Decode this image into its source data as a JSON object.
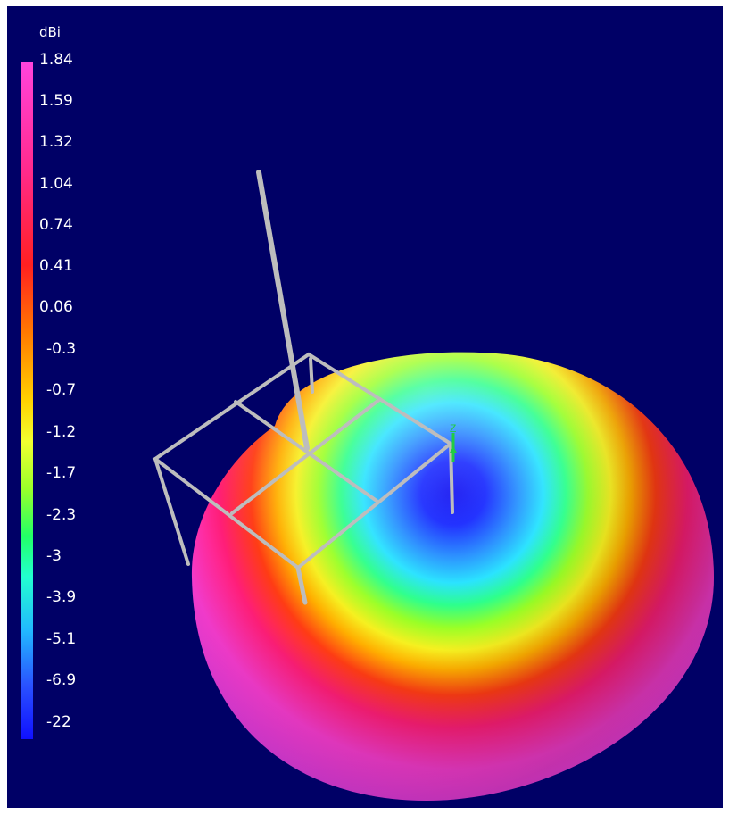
{
  "legend": {
    "unit": "dBi",
    "ticks": [
      "1.84",
      "1.59",
      "1.32",
      "1.04",
      "0.74",
      "0.41",
      "0.06",
      "-0.3",
      "-0.7",
      "-1.2",
      "-1.7",
      "-2.3",
      "-3",
      "-3.9",
      "-5.1",
      "-6.9",
      "-22"
    ]
  },
  "axis_label": "Z",
  "colors": {
    "background": "#000066",
    "structure": "#b8b8b8",
    "label_text": "#ffffff",
    "axis_indicator": "#22cc44",
    "pattern_peak": "#ff44dd",
    "pattern_null": "#1010ff"
  }
}
